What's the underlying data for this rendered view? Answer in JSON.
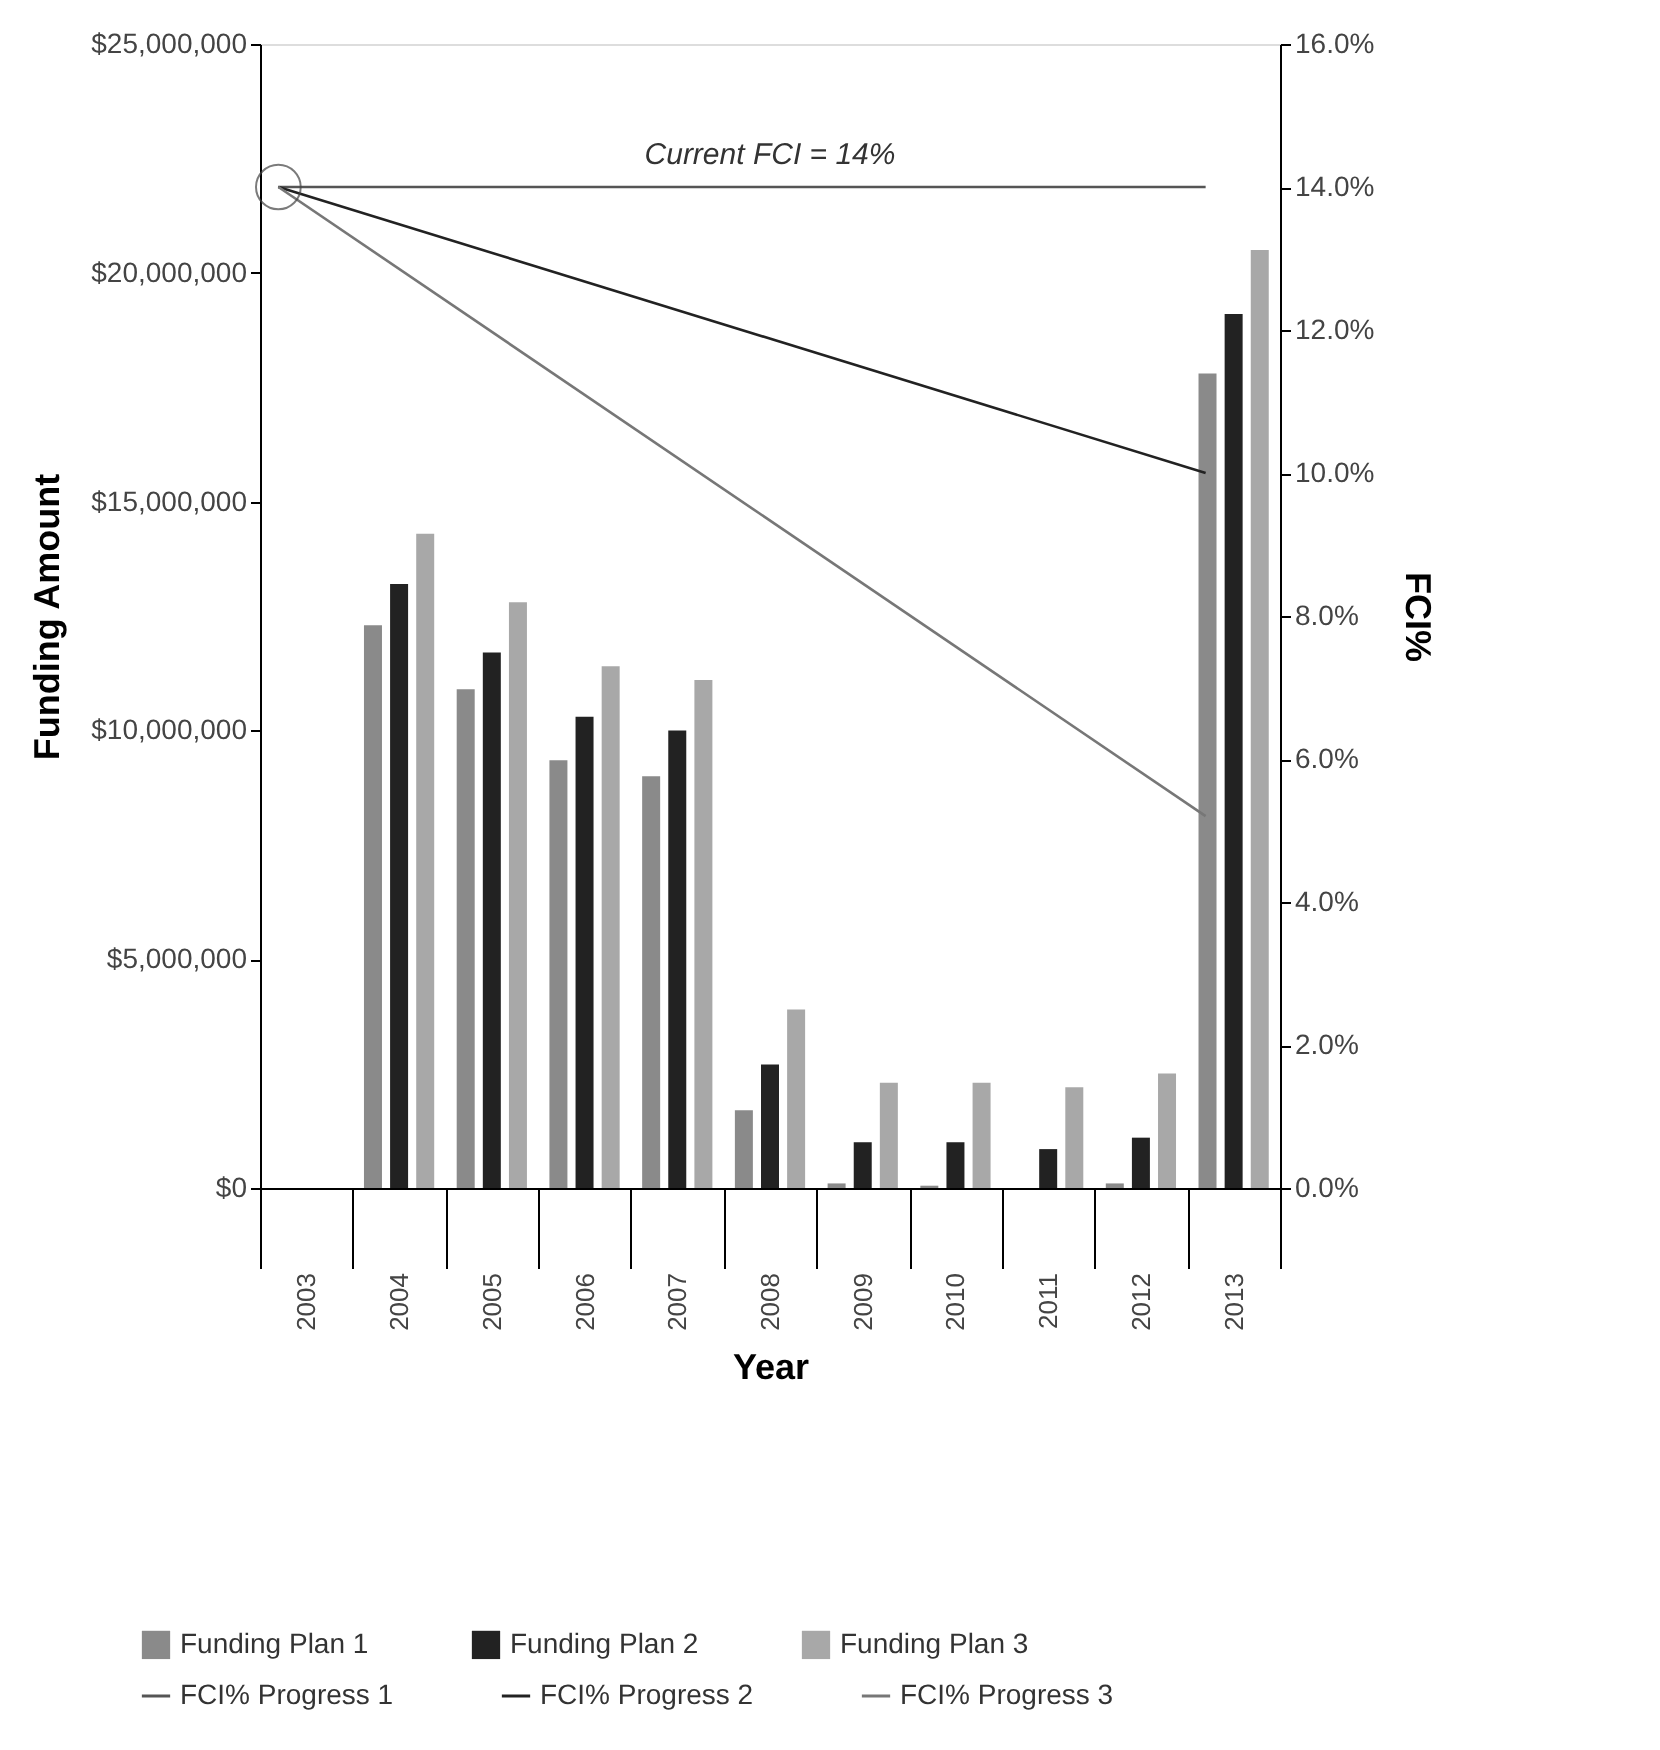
{
  "chart_data": {
    "type": "bar",
    "xlabel": "Year",
    "ylabel": "Funding Amount",
    "y2label": "FCI%",
    "categories": [
      "2003",
      "2004",
      "2005",
      "2006",
      "2007",
      "2008",
      "2009",
      "2010",
      "2011",
      "2012",
      "2013"
    ],
    "series": [
      {
        "name": "Funding Plan 1",
        "color": "#8a8a8a",
        "values": [
          null,
          12300000,
          10900000,
          9350000,
          9000000,
          1700000,
          100000,
          50000,
          0,
          100000,
          17800000
        ]
      },
      {
        "name": "Funding Plan 2",
        "color": "#222222",
        "values": [
          null,
          13200000,
          11700000,
          10300000,
          10000000,
          2700000,
          1000000,
          1000000,
          850000,
          1100000,
          19100000
        ]
      },
      {
        "name": "Funding Plan 3",
        "color": "#a8a8a8",
        "values": [
          null,
          14300000,
          12800000,
          11400000,
          11100000,
          3900000,
          2300000,
          2300000,
          2200000,
          2500000,
          20500000
        ]
      },
      {
        "name": "FCI% Progress 1",
        "type": "line",
        "axis": "y2",
        "color": "#555555",
        "values": [
          14,
          null,
          null,
          null,
          null,
          null,
          null,
          null,
          null,
          null,
          14
        ]
      },
      {
        "name": "FCI% Progress 2",
        "type": "line",
        "axis": "y2",
        "color": "#222222",
        "values": [
          14,
          null,
          null,
          null,
          null,
          null,
          null,
          null,
          null,
          null,
          10
        ]
      },
      {
        "name": "FCI% Progress 3",
        "type": "line",
        "axis": "y2",
        "color": "#777777",
        "values": [
          14,
          null,
          null,
          null,
          null,
          null,
          null,
          null,
          null,
          null,
          5.2
        ]
      }
    ],
    "ylim": [
      0,
      25000000
    ],
    "yticks": [
      {
        "value": 0,
        "label": "$0"
      },
      {
        "value": 5000000,
        "label": "$5,000,000"
      },
      {
        "value": 10000000,
        "label": "$10,000,000"
      },
      {
        "value": 15000000,
        "label": "$15,000,000"
      },
      {
        "value": 20000000,
        "label": "$20,000,000"
      },
      {
        "value": 25000000,
        "label": "$25,000,000"
      }
    ],
    "y2lim": [
      0,
      16
    ],
    "y2ticks": [
      {
        "value": 0,
        "label": "0.0%"
      },
      {
        "value": 2,
        "label": "2.0%"
      },
      {
        "value": 4,
        "label": "4.0%"
      },
      {
        "value": 6,
        "label": "6.0%"
      },
      {
        "value": 8,
        "label": "8.0%"
      },
      {
        "value": 10,
        "label": "10.0%"
      },
      {
        "value": 12,
        "label": "12.0%"
      },
      {
        "value": 14,
        "label": "14.0%"
      },
      {
        "value": 16,
        "label": "16.0%"
      }
    ],
    "annotations": [
      "Current FCI = 14%"
    ],
    "grid": false,
    "legend": "bottom"
  }
}
